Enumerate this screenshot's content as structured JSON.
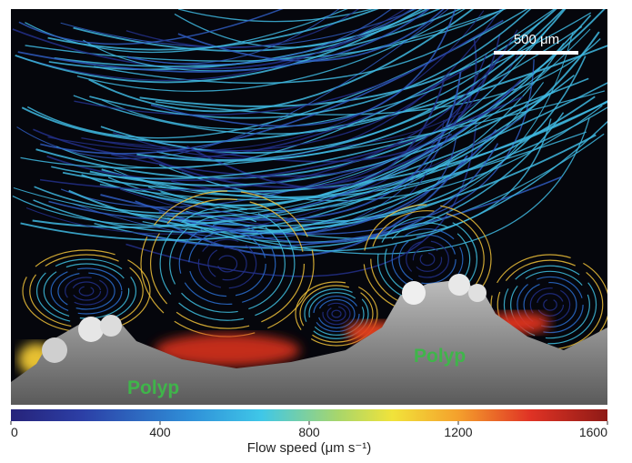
{
  "image": {
    "scale_bar": "500 μm",
    "labels": [
      "Polyp",
      "Polyp"
    ]
  },
  "colorbar": {
    "label": "Flow speed (μm s⁻¹)",
    "lim": [
      0,
      1600
    ],
    "ticks": [
      0,
      400,
      800,
      1200,
      1600
    ]
  }
}
